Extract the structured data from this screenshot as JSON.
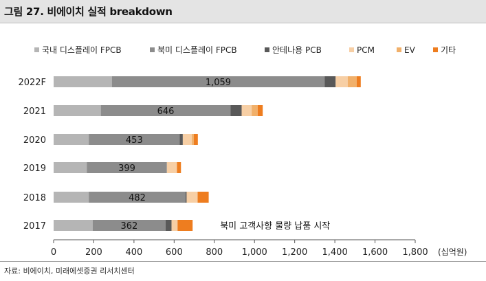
{
  "header": {
    "title": "그림 27. 비에이치 실적 breakdown"
  },
  "source": "자료: 비에이치, 미래에셋증권 리서치센터",
  "chart_data": {
    "type": "bar",
    "orientation": "horizontal",
    "stacked": true,
    "categories": [
      "2022F",
      "2021",
      "2020",
      "2019",
      "2018",
      "2017"
    ],
    "series": [
      {
        "name": "국내 디스플레이 FPCB",
        "color": "#b5b5b5",
        "values": [
          290,
          235,
          175,
          165,
          175,
          195
        ]
      },
      {
        "name": "북미 디스플레이 FPCB",
        "color": "#8c8c8c",
        "values": [
          1059,
          646,
          453,
          399,
          482,
          362
        ]
      },
      {
        "name": "안테나용 PCB",
        "color": "#595959",
        "values": [
          55,
          55,
          15,
          0,
          5,
          30
        ]
      },
      {
        "name": "PCM",
        "color": "#f7cfa5",
        "values": [
          60,
          50,
          45,
          50,
          55,
          30
        ]
      },
      {
        "name": "EV",
        "color": "#f1b06a",
        "values": [
          45,
          30,
          10,
          0,
          0,
          0
        ]
      },
      {
        "name": "기타",
        "color": "#ee7d1f",
        "values": [
          20,
          25,
          20,
          20,
          55,
          75
        ]
      }
    ],
    "data_labels": [
      {
        "series": "북미 디스플레이 FPCB",
        "category": "2022F",
        "text": "1,059"
      },
      {
        "series": "북미 디스플레이 FPCB",
        "category": "2021",
        "text": "646"
      },
      {
        "series": "북미 디스플레이 FPCB",
        "category": "2020",
        "text": "453"
      },
      {
        "series": "북미 디스플레이 FPCB",
        "category": "2019",
        "text": "399"
      },
      {
        "series": "북미 디스플레이 FPCB",
        "category": "2018",
        "text": "482"
      },
      {
        "series": "북미 디스플레이 FPCB",
        "category": "2017",
        "text": "362"
      }
    ],
    "x_ticks": [
      0,
      200,
      400,
      600,
      800,
      1000,
      1200,
      1400,
      1600,
      1800
    ],
    "x_tick_labels": [
      "0",
      "200",
      "400",
      "600",
      "800",
      "1,000",
      "1,200",
      "1,400",
      "1,600",
      "1,800"
    ],
    "xlim": [
      0,
      1800
    ],
    "x_unit": "(십억원)",
    "annotation": {
      "text": "북미 고객사향 물량 납품 시작",
      "category": "2017"
    },
    "legend_position": "top",
    "grid": false
  }
}
